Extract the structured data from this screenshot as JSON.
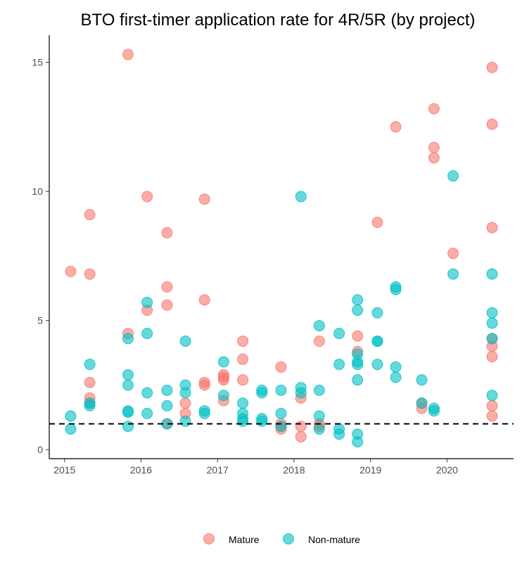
{
  "chart_data": {
    "type": "scatter",
    "title": "BTO first-timer application rate for 4R/5R (by project)",
    "xlabel": "",
    "ylabel": "",
    "xlim": [
      2014.8,
      2020.87
    ],
    "ylim": [
      -0.35,
      16.05
    ],
    "x_ticks": [
      2015,
      2016,
      2017,
      2018,
      2019,
      2020
    ],
    "x_tick_labels": [
      "2015",
      "2016",
      "2017",
      "2018",
      "2019",
      "2020"
    ],
    "y_ticks": [
      0,
      5,
      10,
      15
    ],
    "y_tick_labels": [
      "0",
      "5",
      "10",
      "15"
    ],
    "grid": false,
    "reference_line": {
      "y": 1,
      "style": "dashed",
      "color": "#000000"
    },
    "legend": {
      "placement": "bottom"
    },
    "series": [
      {
        "name": "Mature",
        "color": "#F8766D",
        "points": [
          [
            2015.08,
            6.9
          ],
          [
            2015.33,
            9.1
          ],
          [
            2015.33,
            6.8
          ],
          [
            2015.33,
            2.6
          ],
          [
            2015.33,
            2.0
          ],
          [
            2015.33,
            1.8
          ],
          [
            2015.83,
            15.3
          ],
          [
            2015.83,
            4.5
          ],
          [
            2016.08,
            9.8
          ],
          [
            2016.08,
            5.4
          ],
          [
            2016.34,
            8.4
          ],
          [
            2016.34,
            6.3
          ],
          [
            2016.34,
            5.6
          ],
          [
            2016.34,
            1.0
          ],
          [
            2016.58,
            1.8
          ],
          [
            2016.58,
            1.4
          ],
          [
            2016.83,
            9.7
          ],
          [
            2016.83,
            5.8
          ],
          [
            2016.83,
            2.6
          ],
          [
            2016.83,
            2.5
          ],
          [
            2017.08,
            2.9
          ],
          [
            2017.08,
            2.8
          ],
          [
            2017.08,
            2.7
          ],
          [
            2017.08,
            1.9
          ],
          [
            2017.33,
            4.2
          ],
          [
            2017.33,
            3.5
          ],
          [
            2017.33,
            2.7
          ],
          [
            2017.83,
            3.2
          ],
          [
            2017.83,
            1.0
          ],
          [
            2017.83,
            0.9
          ],
          [
            2017.83,
            0.8
          ],
          [
            2018.09,
            2.0
          ],
          [
            2018.09,
            0.9
          ],
          [
            2018.09,
            0.5
          ],
          [
            2018.33,
            4.2
          ],
          [
            2018.33,
            1.0
          ],
          [
            2018.33,
            0.9
          ],
          [
            2018.83,
            4.4
          ],
          [
            2018.83,
            3.8
          ],
          [
            2019.09,
            8.8
          ],
          [
            2019.33,
            12.5
          ],
          [
            2019.67,
            1.8
          ],
          [
            2019.67,
            1.6
          ],
          [
            2019.83,
            13.2
          ],
          [
            2019.83,
            11.7
          ],
          [
            2019.83,
            11.3
          ],
          [
            2020.08,
            7.6
          ],
          [
            2020.59,
            14.8
          ],
          [
            2020.59,
            12.6
          ],
          [
            2020.59,
            8.6
          ],
          [
            2020.59,
            4.3
          ],
          [
            2020.59,
            4.0
          ],
          [
            2020.59,
            3.6
          ],
          [
            2020.59,
            1.7
          ],
          [
            2020.59,
            1.3
          ]
        ]
      },
      {
        "name": "Non-mature",
        "color": "#00BFC4",
        "points": [
          [
            2015.08,
            1.3
          ],
          [
            2015.08,
            0.8
          ],
          [
            2015.33,
            3.3
          ],
          [
            2015.33,
            1.8
          ],
          [
            2015.33,
            1.7
          ],
          [
            2015.83,
            4.3
          ],
          [
            2015.83,
            2.9
          ],
          [
            2015.83,
            2.5
          ],
          [
            2015.83,
            1.5
          ],
          [
            2015.83,
            1.45
          ],
          [
            2015.83,
            0.9
          ],
          [
            2016.08,
            5.7
          ],
          [
            2016.08,
            4.5
          ],
          [
            2016.08,
            2.2
          ],
          [
            2016.08,
            1.4
          ],
          [
            2016.34,
            2.3
          ],
          [
            2016.34,
            1.7
          ],
          [
            2016.34,
            1.0
          ],
          [
            2016.58,
            4.2
          ],
          [
            2016.58,
            2.5
          ],
          [
            2016.58,
            2.2
          ],
          [
            2016.58,
            1.1
          ],
          [
            2016.83,
            1.5
          ],
          [
            2016.83,
            1.4
          ],
          [
            2017.08,
            3.4
          ],
          [
            2017.08,
            2.1
          ],
          [
            2017.33,
            1.8
          ],
          [
            2017.33,
            1.4
          ],
          [
            2017.33,
            1.2
          ],
          [
            2017.33,
            1.1
          ],
          [
            2017.58,
            2.3
          ],
          [
            2017.58,
            2.2
          ],
          [
            2017.58,
            1.2
          ],
          [
            2017.58,
            1.1
          ],
          [
            2017.83,
            2.3
          ],
          [
            2017.83,
            1.4
          ],
          [
            2017.83,
            0.9
          ],
          [
            2018.09,
            9.8
          ],
          [
            2018.09,
            2.4
          ],
          [
            2018.09,
            2.2
          ],
          [
            2018.33,
            4.8
          ],
          [
            2018.33,
            2.3
          ],
          [
            2018.33,
            1.3
          ],
          [
            2018.33,
            0.8
          ],
          [
            2018.59,
            4.5
          ],
          [
            2018.59,
            3.3
          ],
          [
            2018.59,
            0.8
          ],
          [
            2018.59,
            0.6
          ],
          [
            2018.83,
            5.8
          ],
          [
            2018.83,
            5.4
          ],
          [
            2018.83,
            3.7
          ],
          [
            2018.83,
            3.4
          ],
          [
            2018.83,
            3.3
          ],
          [
            2018.83,
            2.7
          ],
          [
            2018.83,
            0.6
          ],
          [
            2018.83,
            0.3
          ],
          [
            2019.09,
            5.3
          ],
          [
            2019.09,
            4.2
          ],
          [
            2019.09,
            4.2
          ],
          [
            2019.09,
            3.3
          ],
          [
            2019.33,
            6.3
          ],
          [
            2019.33,
            6.2
          ],
          [
            2019.33,
            3.2
          ],
          [
            2019.33,
            2.8
          ],
          [
            2019.67,
            2.7
          ],
          [
            2019.67,
            1.8
          ],
          [
            2019.83,
            1.6
          ],
          [
            2019.83,
            1.5
          ],
          [
            2020.08,
            10.6
          ],
          [
            2020.08,
            6.8
          ],
          [
            2020.59,
            6.8
          ],
          [
            2020.59,
            5.3
          ],
          [
            2020.59,
            4.9
          ],
          [
            2020.59,
            4.3
          ],
          [
            2020.59,
            2.1
          ]
        ]
      }
    ]
  }
}
